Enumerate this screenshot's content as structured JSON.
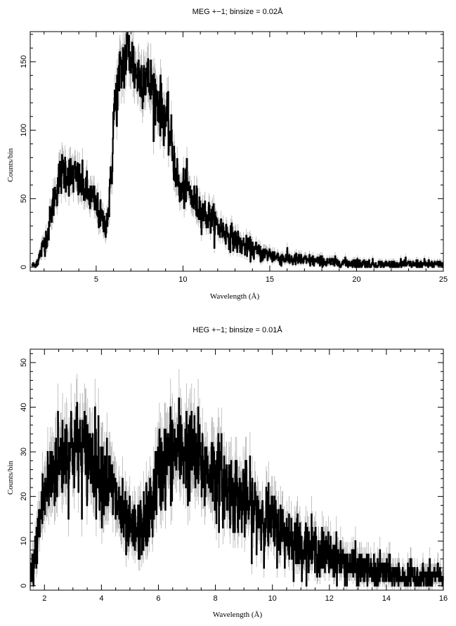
{
  "chart_data": [
    {
      "type": "line",
      "title": "MEG +−1; binsize = 0.02Å",
      "xlabel": "Wavelength (Å)",
      "ylabel": "Counts/bin",
      "xlim": [
        1.2,
        25
      ],
      "ylim": [
        -3,
        172
      ],
      "xticks_major": [
        5,
        10,
        15,
        20,
        25
      ],
      "yticks_major": [
        0,
        50,
        100,
        150
      ],
      "xtick_minor_step": 1,
      "ytick_minor_step": 10,
      "grid": false,
      "legend": "none",
      "line_color": "#000000",
      "error_color": "#b3b3b3",
      "binsize": 0.02,
      "series": [
        {
          "x": [
            1.3,
            1.5,
            1.7,
            2.0,
            2.2,
            2.4,
            2.6,
            2.8,
            3.0,
            3.2,
            3.5,
            3.8,
            4.0,
            4.3,
            4.6,
            4.9,
            5.2,
            5.5,
            5.7,
            5.9,
            6.0,
            6.2,
            6.4,
            6.6,
            6.8,
            7.0,
            7.2,
            7.5,
            7.8,
            8.0,
            8.3,
            8.6,
            8.9,
            9.2,
            9.4,
            9.6,
            9.8,
            10.0,
            10.2,
            10.5,
            10.8,
            11.0,
            11.3,
            11.6,
            12.0,
            12.4,
            12.8,
            13.2,
            13.6,
            14.0,
            14.5,
            15.0,
            15.5,
            16.0,
            17.0,
            18.0,
            19.0,
            20.0,
            21.0,
            22.0,
            23.0,
            24.0,
            25.0
          ],
          "y": [
            1,
            2,
            6,
            18,
            24,
            38,
            52,
            62,
            68,
            72,
            67,
            66,
            62,
            58,
            52,
            48,
            38,
            30,
            40,
            70,
            110,
            128,
            142,
            150,
            158,
            155,
            145,
            138,
            142,
            135,
            130,
            120,
            112,
            100,
            85,
            70,
            55,
            56,
            60,
            50,
            46,
            43,
            38,
            36,
            30,
            26,
            22,
            18,
            15,
            13,
            10,
            9,
            7,
            6,
            5,
            4,
            3,
            3,
            2,
            2,
            2,
            2,
            2
          ]
        }
      ]
    },
    {
      "type": "line",
      "title": "HEG +−1; binsize = 0.01Å",
      "xlabel": "Wavelength (Å)",
      "ylabel": "Counts/bin",
      "xlim": [
        1.5,
        16
      ],
      "ylim": [
        -1,
        53
      ],
      "xticks_major": [
        2,
        4,
        6,
        8,
        10,
        12,
        14,
        16
      ],
      "yticks_major": [
        0,
        10,
        20,
        30,
        40,
        50
      ],
      "xtick_minor_step": 0.5,
      "ytick_minor_step": 2,
      "grid": false,
      "legend": "none",
      "line_color": "#000000",
      "error_color": "#b3b3b3",
      "binsize": 0.01,
      "series": [
        {
          "x": [
            1.5,
            1.6,
            1.7,
            1.8,
            1.9,
            2.0,
            2.2,
            2.4,
            2.6,
            2.8,
            3.0,
            3.2,
            3.4,
            3.6,
            3.8,
            4.0,
            4.2,
            4.4,
            4.6,
            4.8,
            5.0,
            5.2,
            5.4,
            5.6,
            5.8,
            6.0,
            6.2,
            6.4,
            6.6,
            6.8,
            7.0,
            7.2,
            7.4,
            7.6,
            7.8,
            8.0,
            8.3,
            8.6,
            9.0,
            9.4,
            9.8,
            10.2,
            10.6,
            11.0,
            11.5,
            12.0,
            12.5,
            13.0,
            13.5,
            14.0,
            14.5,
            15.0,
            15.5,
            16.0
          ],
          "y": [
            1,
            4,
            8,
            13,
            17,
            20,
            24,
            27,
            29,
            30,
            31,
            31,
            30,
            29,
            28,
            26,
            24,
            21,
            18,
            14,
            12,
            12,
            13,
            15,
            19,
            25,
            28,
            29,
            30,
            31,
            30,
            29,
            28,
            26,
            26,
            25,
            23,
            21,
            19,
            17,
            15,
            13,
            11,
            9,
            8,
            7,
            5,
            4,
            3,
            3,
            2,
            2,
            2,
            2
          ]
        }
      ]
    }
  ]
}
